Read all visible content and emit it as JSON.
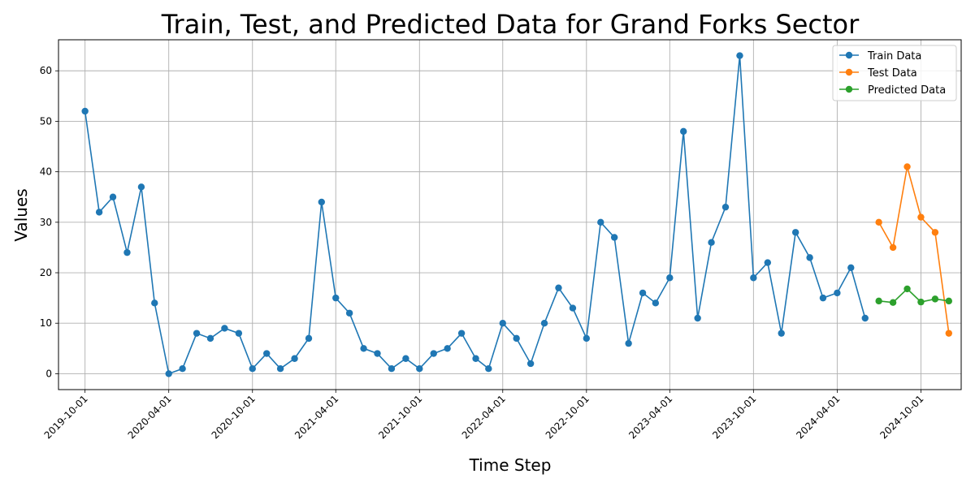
{
  "chart_data": {
    "type": "line",
    "title": "Train, Test, and Predicted Data for Grand Forks Sector",
    "xlabel": "Time Step",
    "ylabel": "Values",
    "grid": true,
    "legend_position": "top-right",
    "ylim": [
      -3.15,
      66.15
    ],
    "xlim": [
      "2019-08-04",
      "2024-12-28"
    ],
    "x_ticks": [
      "2019-10-01",
      "2020-04-01",
      "2020-10-01",
      "2021-04-01",
      "2021-10-01",
      "2022-04-01",
      "2022-10-01",
      "2023-04-01",
      "2023-10-01",
      "2024-04-01",
      "2024-10-01"
    ],
    "y_ticks": [
      0,
      10,
      20,
      30,
      40,
      50,
      60
    ],
    "series": [
      {
        "name": "Train Data",
        "color": "#1f77b4",
        "x": [
          "2019-10-01",
          "2019-11-01",
          "2019-12-01",
          "2020-01-01",
          "2020-02-01",
          "2020-03-01",
          "2020-04-01",
          "2020-05-01",
          "2020-06-01",
          "2020-07-01",
          "2020-08-01",
          "2020-09-01",
          "2020-10-01",
          "2020-11-01",
          "2020-12-01",
          "2021-01-01",
          "2021-02-01",
          "2021-03-01",
          "2021-04-01",
          "2021-05-01",
          "2021-06-01",
          "2021-07-01",
          "2021-08-01",
          "2021-09-01",
          "2021-10-01",
          "2021-11-01",
          "2021-12-01",
          "2022-01-01",
          "2022-02-01",
          "2022-03-01",
          "2022-04-01",
          "2022-05-01",
          "2022-06-01",
          "2022-07-01",
          "2022-08-01",
          "2022-09-01",
          "2022-10-01",
          "2022-11-01",
          "2022-12-01",
          "2023-01-01",
          "2023-02-01",
          "2023-03-01",
          "2023-04-01",
          "2023-05-01",
          "2023-06-01",
          "2023-07-01",
          "2023-08-01",
          "2023-09-01",
          "2023-10-01",
          "2023-11-01",
          "2023-12-01",
          "2024-01-01",
          "2024-02-01",
          "2024-03-01",
          "2024-04-01",
          "2024-05-01",
          "2024-06-01"
        ],
        "values": [
          52,
          32,
          35,
          24,
          37,
          14,
          0,
          1,
          8,
          7,
          9,
          8,
          1,
          4,
          1,
          3,
          7,
          34,
          15,
          12,
          5,
          4,
          1,
          3,
          1,
          4,
          5,
          8,
          3,
          1,
          10,
          7,
          2,
          10,
          17,
          13,
          7,
          30,
          27,
          6,
          16,
          14,
          19,
          48,
          11,
          26,
          33,
          63,
          19,
          22,
          8,
          28,
          23,
          15,
          16,
          21,
          11
        ]
      },
      {
        "name": "Test Data",
        "color": "#ff7f0e",
        "x": [
          "2024-07-01",
          "2024-08-01",
          "2024-09-01",
          "2024-10-01",
          "2024-11-01",
          "2024-12-01"
        ],
        "values": [
          30,
          25,
          41,
          31,
          28,
          8
        ]
      },
      {
        "name": "Predicted Data",
        "color": "#2ca02c",
        "x": [
          "2024-07-01",
          "2024-08-01",
          "2024-09-01",
          "2024-10-01",
          "2024-11-01",
          "2024-12-01"
        ],
        "values": [
          14.4,
          14.1,
          16.8,
          14.2,
          14.8,
          14.4
        ]
      }
    ]
  }
}
